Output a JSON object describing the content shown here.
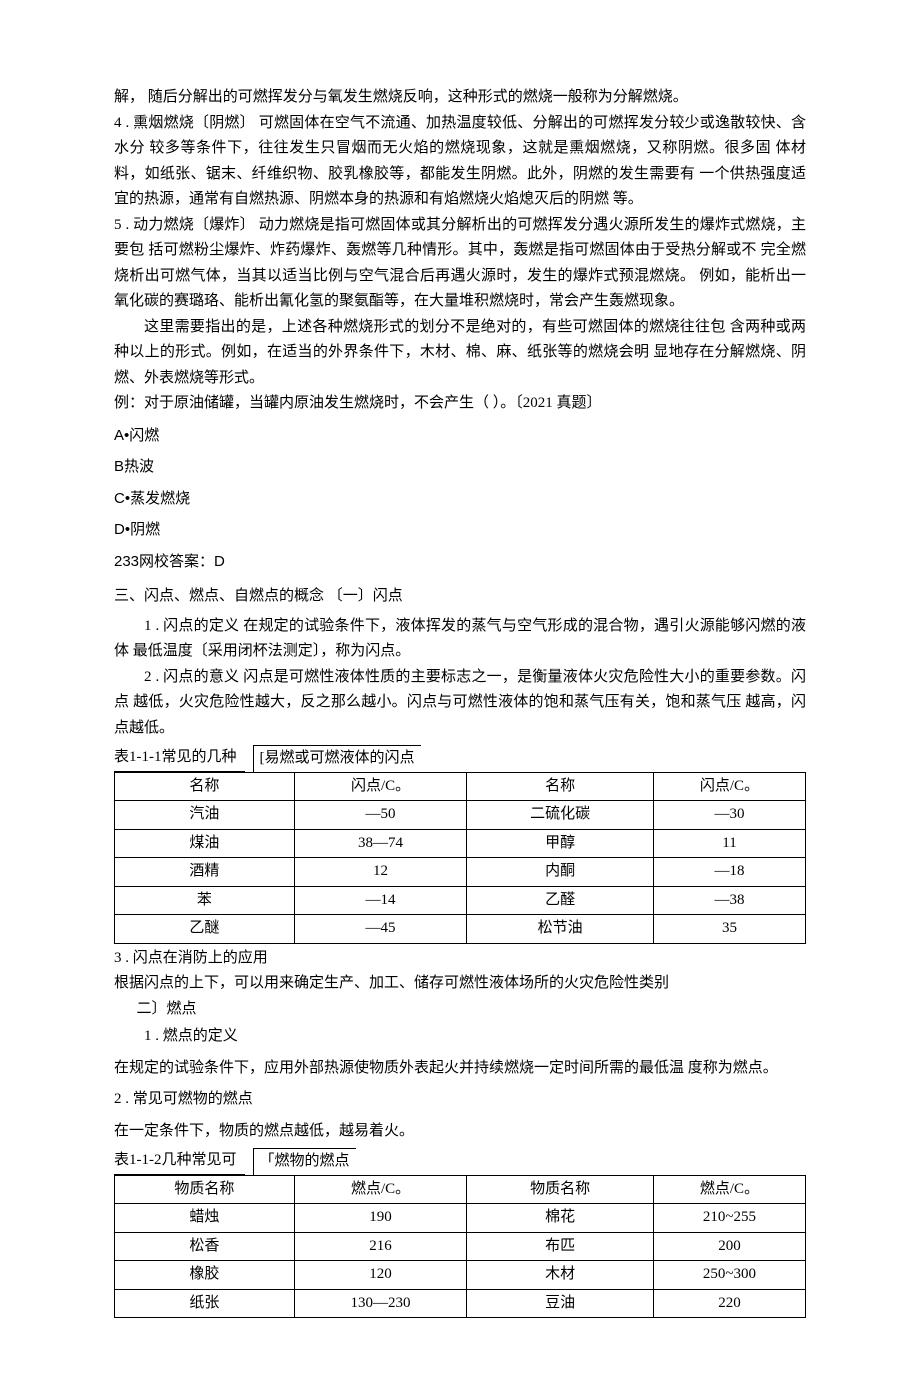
{
  "p1": "解，  随后分解出的可燃挥发分与氧发生燃烧反响，这种形式的燃烧一般称为分解燃烧。",
  "p2": "4 . 熏烟燃烧〔阴燃〕 可燃固体在空气不流通、加热温度较低、分解出的可燃挥发分较少或逸散较快、含水分 较多等条件下，往往发生只冒烟而无火焰的燃烧现象，这就是熏烟燃烧，又称阴燃。很多固 体材料，如纸张、锯末、纤维织物、胶乳橡胶等，都能发生阴燃。此外，阴燃的发生需要有 一个供热强度适宜的热源，通常有自燃热源、阴燃本身的热源和有焰燃烧火焰熄灭后的阴燃 等。",
  "p3": "5 . 动力燃烧〔爆炸〕 动力燃烧是指可燃固体或其分解析出的可燃挥发分遇火源所发生的爆炸式燃烧，主要包 括可燃粉尘爆炸、炸药爆炸、轰燃等几种情形。其中，轰燃是指可燃固体由于受热分解或不 完全燃烧析出可燃气体，当其以适当比例与空气混合后再遇火源时，发生的爆炸式预混燃烧。 例如，能析出一氧化碳的赛璐珞、能析出氰化氢的聚氨酯等，在大量堆积燃烧时，常会产生轰燃现象。",
  "p4": "这里需要指出的是，上述各种燃烧形式的划分不是绝对的，有些可燃固体的燃烧往往包 含两种或两种以上的形式。例如，在适当的外界条件下，木材、棉、麻、纸张等的燃烧会明 显地存在分解燃烧、阴燃、外表燃烧等形式。",
  "p5": "例：对于原油储罐，当罐内原油发生燃烧时，不会产生（ ）。〔2021 真题〕",
  "optA": "A•闪燃",
  "optB": "B热波",
  "optC": "C•蒸发燃烧",
  "optD": "D•阴燃",
  "answer": "233网校答案：D",
  "s3": "三、闪点、燃点、自燃点的概念 〔一〕闪点",
  "s3_1": "1 . 闪点的定义 在规定的试验条件下，液体挥发的蒸气与空气形成的混合物，遇引火源能够闪燃的液体 最低温度〔采用闭杯法测定〕，称为闪点。",
  "s3_2": "2 . 闪点的意义 闪点是可燃性液体性质的主要标志之一，是衡量液体火灾危险性大小的重要参数。闪点 越低，火灾危险性越大，反之那么越小。闪点与可燃性液体的饱和蒸气压有关，饱和蒸气压 越高，闪点越低。",
  "t1_caption_left": "表1-1-1常见的几种",
  "t1_caption_right": "[易燃或可燃液体的闪点",
  "table1": {
    "headers": [
      "名称",
      "闪点/C。",
      "名称",
      "闪点/C。"
    ],
    "rows": [
      [
        "汽油",
        "—50",
        "二硫化碳",
        "—30"
      ],
      [
        "煤油",
        "38—74",
        "甲醇",
        "11"
      ],
      [
        "酒精",
        "12",
        "内酮",
        "—18"
      ],
      [
        "苯",
        "—14",
        "乙醛",
        "—38"
      ],
      [
        "乙醚",
        "—45",
        "松节油",
        "35"
      ]
    ],
    "col_widths": [
      "26%",
      "25%",
      "27%",
      "22%"
    ]
  },
  "s3_3": "3 . 闪点在消防上的应用",
  "s3_3b": "根据闪点的上下，可以用来确定生产、加工、储存可燃性液体场所的火灾危险性类别",
  "s3_sub2": "二〕燃点",
  "s3_sub2_1": "1 . 燃点的定义",
  "s3_sub2_1b": "在规定的试验条件下，应用外部热源使物质外表起火并持续燃烧一定时间所需的最低温 度称为燃点。",
  "s3_sub2_2": "2 . 常见可燃物的燃点",
  "s3_sub2_2b": "在一定条件下，物质的燃点越低，越易着火。",
  "t2_caption_left": "表1-1-2几种常见可",
  "t2_caption_right": "「燃物的燃点",
  "table2": {
    "headers": [
      "物质名称",
      "燃点/C。",
      "物质名称",
      "燃点/C。"
    ],
    "rows": [
      [
        "蜡烛",
        "190",
        "棉花",
        "210~255"
      ],
      [
        "松香",
        "216",
        "布匹",
        "200"
      ],
      [
        "橡胶",
        "120",
        "木材",
        "250~300"
      ],
      [
        "纸张",
        "130—230",
        "豆油",
        "220"
      ]
    ],
    "col_widths": [
      "26%",
      "25%",
      "27%",
      "22%"
    ]
  }
}
